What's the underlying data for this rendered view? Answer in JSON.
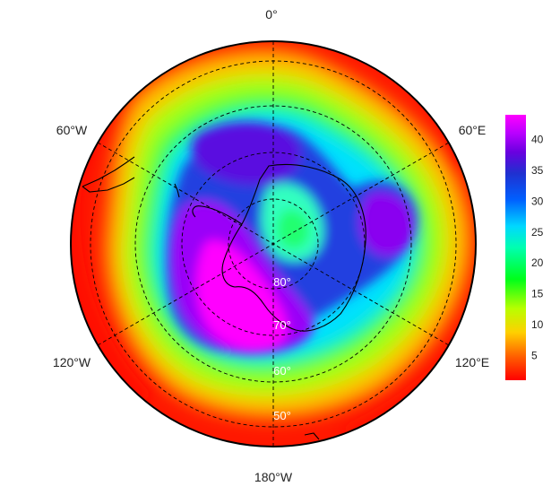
{
  "map": {
    "projection": "south-polar-stereographic",
    "longitude_labels": {
      "top": "0°",
      "upper_left": "60°W",
      "upper_right": "60°E",
      "lower_left": "120°W",
      "lower_right": "120°E",
      "bottom": "180°W"
    },
    "latitude_labels": [
      "80°",
      "70°",
      "60°",
      "50°"
    ],
    "colorbar": {
      "tick_labels": [
        "5",
        "10",
        "15",
        "20",
        "25",
        "30",
        "35",
        "40"
      ],
      "tick_values": [
        5,
        10,
        15,
        20,
        25,
        30,
        35,
        40
      ],
      "min": 1,
      "max": 44,
      "colors": [
        "#ff0000",
        "#ff6000",
        "#ffd000",
        "#b8ff00",
        "#00ff1a",
        "#00ffb0",
        "#00d8ff",
        "#0060ff",
        "#2030d0",
        "#6a00e0",
        "#b800ff",
        "#ff00ff"
      ]
    },
    "grid": "on",
    "coastlines": "on"
  }
}
